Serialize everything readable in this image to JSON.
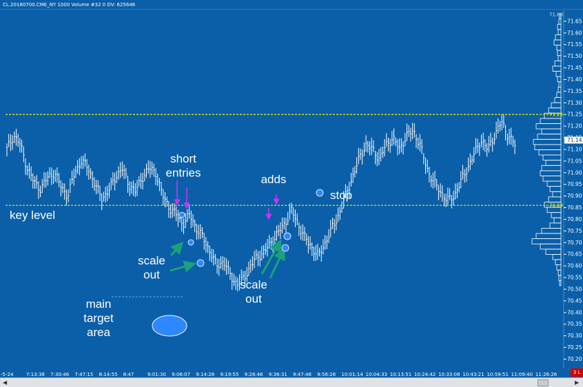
{
  "window": {
    "title": "CL.20180700.CME_NY  1000 Volume  #32 0 DV: 625646"
  },
  "colors": {
    "background": "#0a5fa8",
    "bars": "#ffffff",
    "level_line": "#f2f200",
    "entry_arrows": "#cc33ff",
    "scale_arrows": "#1aa27a",
    "target_ellipse": "#2f87ff"
  },
  "chart_data": {
    "type": "bar",
    "price_axis": {
      "ylim": [
        70.16,
        71.7
      ],
      "ticks": [
        "71.65",
        "71.60",
        "71.55",
        "71.50",
        "71.45",
        "71.40",
        "71.35",
        "71.30",
        "71.25",
        "71.20",
        "71.15",
        "71.10",
        "71.05",
        "71.00",
        "70.95",
        "70.90",
        "70.85",
        "70.80",
        "70.75",
        "70.70",
        "70.65",
        "70.60",
        "70.55",
        "70.50",
        "70.45",
        "70.40",
        "70.35",
        "70.30",
        "70.25",
        "70.20"
      ],
      "tags": [
        {
          "value": 71.68,
          "label": "71.68"
        },
        {
          "value": 71.25,
          "label": "71.25"
        },
        {
          "value": 71.14,
          "label": "71.14"
        },
        {
          "value": 70.86,
          "label": "70.86"
        }
      ]
    },
    "time_axis": {
      "labels": [
        "7:13:38",
        "7:30:46",
        "7:47:15",
        "8:14:55",
        "8:47",
        "9:01:30",
        "9:06:07",
        "9:14:28",
        "9:19:55",
        "9:28:46",
        "9:36:31",
        "9:47:48",
        "9:56:26",
        "10:01:14",
        "10:04:33",
        "10:13:51",
        "10:24:42",
        "10:33:08",
        "10:43:21",
        "10:59:51",
        "11:09:40",
        "11:26:26"
      ],
      "partial_left_label": "-5-24",
      "badge": "3 L"
    },
    "levels": [
      {
        "value": 71.25
      },
      {
        "value": 70.86
      }
    ],
    "price_path": [
      71.1,
      71.16,
      71.12,
      71.02,
      70.96,
      70.93,
      70.98,
      71.0,
      70.94,
      70.9,
      71.0,
      71.05,
      71.02,
      70.95,
      70.89,
      70.92,
      70.98,
      71.02,
      70.95,
      70.92,
      70.98,
      71.02,
      71.0,
      70.9,
      70.85,
      70.82,
      70.78,
      70.82,
      70.76,
      70.72,
      70.66,
      70.6,
      70.62,
      70.56,
      70.52,
      70.55,
      70.6,
      70.64,
      70.66,
      70.7,
      70.74,
      70.78,
      70.84,
      70.78,
      70.72,
      70.68,
      70.64,
      70.7,
      70.76,
      70.82,
      70.9,
      70.98,
      71.06,
      71.12,
      71.1,
      71.06,
      71.12,
      71.15,
      71.1,
      71.16,
      71.18,
      71.12,
      71.02,
      70.96,
      70.92,
      70.88,
      70.9,
      70.96,
      71.02,
      71.08,
      71.14,
      71.1,
      71.16,
      71.22,
      71.16,
      71.12
    ]
  },
  "volume_profile": {
    "widths": [
      2,
      3,
      5,
      4,
      8,
      10,
      6,
      5,
      4,
      9,
      12,
      7,
      5,
      3,
      4,
      6,
      9,
      14,
      18,
      24,
      30,
      36,
      28,
      34,
      40,
      38,
      32,
      26,
      22,
      28,
      30,
      26,
      20,
      16,
      12,
      18,
      24,
      20,
      14,
      10,
      16,
      28,
      36,
      42,
      30,
      22,
      12,
      8,
      6,
      4,
      3,
      2
    ]
  },
  "annotations": {
    "short_entries": "short\nentries",
    "adds": "adds",
    "stop": "stop",
    "key_level": "key level",
    "scale_out_1": "scale\nout",
    "scale_out_2": "scale\nout",
    "main_target": "main\ntarget\narea"
  }
}
